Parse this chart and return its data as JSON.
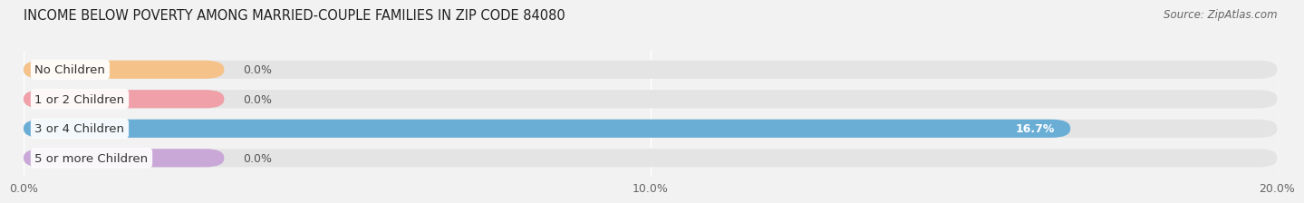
{
  "title": "INCOME BELOW POVERTY AMONG MARRIED-COUPLE FAMILIES IN ZIP CODE 84080",
  "source": "Source: ZipAtlas.com",
  "categories": [
    "No Children",
    "1 or 2 Children",
    "3 or 4 Children",
    "5 or more Children"
  ],
  "values": [
    0.0,
    0.0,
    16.7,
    0.0
  ],
  "bar_colors": [
    "#f5c28a",
    "#f0a0a8",
    "#6aaed6",
    "#c9a8d8"
  ],
  "xlim": [
    0,
    20.0
  ],
  "xticks": [
    0.0,
    10.0,
    20.0
  ],
  "xtick_labels": [
    "0.0%",
    "10.0%",
    "20.0%"
  ],
  "background_color": "#f2f2f2",
  "bar_bg_color": "#e4e4e4",
  "title_fontsize": 10.5,
  "source_fontsize": 8.5,
  "label_fontsize": 9.5,
  "value_fontsize": 9,
  "bar_height": 0.62
}
